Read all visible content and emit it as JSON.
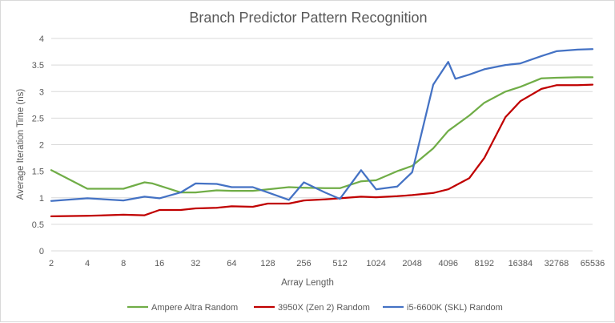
{
  "chart_data": {
    "type": "line",
    "title": "Branch Predictor Pattern Recognition",
    "xlabel": "Array Length",
    "ylabel": "Average Iteration Time (ns)",
    "x_scale": "log2",
    "x_ticks": [
      "2",
      "4",
      "8",
      "16",
      "32",
      "64",
      "128",
      "256",
      "512",
      "1024",
      "2048",
      "4096",
      "8192",
      "16384",
      "32768",
      "65536"
    ],
    "ylim": [
      0,
      4
    ],
    "y_ticks": [
      "0",
      "0.5",
      "1",
      "1.5",
      "2",
      "2.5",
      "3",
      "3.5",
      "4"
    ],
    "grid": true,
    "legend": "bottom",
    "series": [
      {
        "name": "Ampere Altra Random",
        "color": "#70ad47",
        "points": [
          [
            2,
            1.52
          ],
          [
            4,
            1.17
          ],
          [
            8,
            1.17
          ],
          [
            12,
            1.29
          ],
          [
            14,
            1.27
          ],
          [
            24,
            1.1
          ],
          [
            32,
            1.1
          ],
          [
            48,
            1.14
          ],
          [
            64,
            1.13
          ],
          [
            96,
            1.13
          ],
          [
            128,
            1.16
          ],
          [
            192,
            1.2
          ],
          [
            256,
            1.19
          ],
          [
            384,
            1.18
          ],
          [
            512,
            1.18
          ],
          [
            768,
            1.31
          ],
          [
            1024,
            1.33
          ],
          [
            1536,
            1.5
          ],
          [
            2048,
            1.6
          ],
          [
            3072,
            1.93
          ],
          [
            4096,
            2.26
          ],
          [
            6144,
            2.55
          ],
          [
            8192,
            2.79
          ],
          [
            12288,
            3.0
          ],
          [
            16384,
            3.09
          ],
          [
            24576,
            3.25
          ],
          [
            32768,
            3.26
          ],
          [
            49152,
            3.27
          ],
          [
            65536,
            3.27
          ]
        ]
      },
      {
        "name": "3950X (Zen 2) Random",
        "color": "#c00000",
        "points": [
          [
            2,
            0.65
          ],
          [
            4,
            0.66
          ],
          [
            8,
            0.68
          ],
          [
            12,
            0.67
          ],
          [
            16,
            0.77
          ],
          [
            24,
            0.77
          ],
          [
            32,
            0.8
          ],
          [
            48,
            0.81
          ],
          [
            64,
            0.84
          ],
          [
            96,
            0.83
          ],
          [
            128,
            0.89
          ],
          [
            192,
            0.89
          ],
          [
            256,
            0.95
          ],
          [
            384,
            0.97
          ],
          [
            512,
            0.99
          ],
          [
            768,
            1.02
          ],
          [
            1024,
            1.01
          ],
          [
            1536,
            1.03
          ],
          [
            2048,
            1.05
          ],
          [
            3072,
            1.09
          ],
          [
            4096,
            1.16
          ],
          [
            6144,
            1.37
          ],
          [
            8192,
            1.75
          ],
          [
            12288,
            2.52
          ],
          [
            16384,
            2.82
          ],
          [
            24576,
            3.05
          ],
          [
            32768,
            3.12
          ],
          [
            49152,
            3.12
          ],
          [
            65536,
            3.13
          ]
        ]
      },
      {
        "name": "i5-6600K (SKL) Random",
        "color": "#4472c4",
        "points": [
          [
            2,
            0.94
          ],
          [
            4,
            0.99
          ],
          [
            8,
            0.95
          ],
          [
            12,
            1.02
          ],
          [
            16,
            0.99
          ],
          [
            24,
            1.1
          ],
          [
            32,
            1.27
          ],
          [
            48,
            1.26
          ],
          [
            64,
            1.2
          ],
          [
            96,
            1.2
          ],
          [
            128,
            1.1
          ],
          [
            192,
            0.96
          ],
          [
            256,
            1.29
          ],
          [
            384,
            1.1
          ],
          [
            512,
            0.98
          ],
          [
            768,
            1.52
          ],
          [
            1024,
            1.16
          ],
          [
            1536,
            1.21
          ],
          [
            2048,
            1.48
          ],
          [
            3072,
            3.13
          ],
          [
            4096,
            3.56
          ],
          [
            4700,
            3.24
          ],
          [
            6144,
            3.32
          ],
          [
            8192,
            3.42
          ],
          [
            12288,
            3.5
          ],
          [
            16384,
            3.53
          ],
          [
            24576,
            3.67
          ],
          [
            32768,
            3.76
          ],
          [
            49152,
            3.79
          ],
          [
            65536,
            3.8
          ]
        ]
      }
    ]
  }
}
